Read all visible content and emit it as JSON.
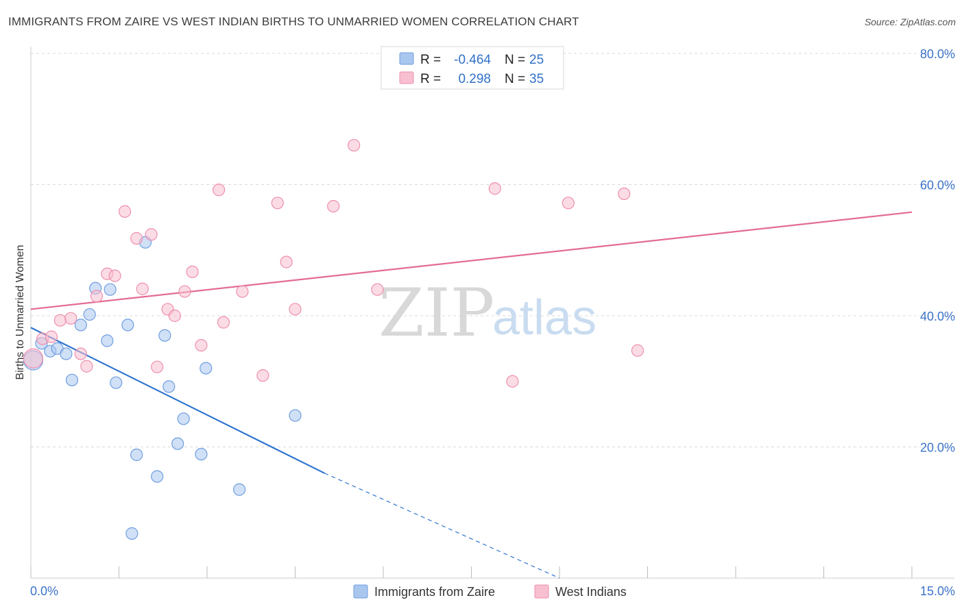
{
  "title": "IMMIGRANTS FROM ZAIRE VS WEST INDIAN BIRTHS TO UNMARRIED WOMEN CORRELATION CHART",
  "source": "Source: ZipAtlas.com",
  "watermark": {
    "zip": "ZIP",
    "atlas": "atlas"
  },
  "legend": {
    "rows": [
      {
        "r_label": "R =",
        "r_value": "-0.464",
        "n_label": "N =",
        "n_value": "25",
        "color": "#a9c6ef",
        "stroke": "#6f9ee0"
      },
      {
        "r_label": "R =",
        "r_value": "0.298",
        "n_label": "N =",
        "n_value": "35",
        "color": "#f7bfd0",
        "stroke": "#ee8fae"
      }
    ]
  },
  "chart_data": {
    "type": "scatter",
    "title": "IMMIGRANTS FROM ZAIRE VS WEST INDIAN BIRTHS TO UNMARRIED WOMEN CORRELATION CHART",
    "xlabel": "",
    "ylabel": "Births to Unmarried Women",
    "xlim": [
      0,
      15
    ],
    "ylim": [
      0,
      80
    ],
    "x_tick_labels": {
      "left": "0.0%",
      "right": "15.0%"
    },
    "y_ticks": [
      {
        "value": 20,
        "label": "20.0%"
      },
      {
        "value": 40,
        "label": "40.0%"
      },
      {
        "value": 60,
        "label": "60.0%"
      },
      {
        "value": 80,
        "label": "80.0%"
      }
    ],
    "series": [
      {
        "name": "Immigrants from Zaire",
        "color": "#a9c6ef",
        "stroke": "#6f9ee0",
        "line_color": "#2f74d0",
        "trend": {
          "x0": 0,
          "y0": 38.2,
          "x1": 5.0,
          "y1": 16.0,
          "dash_to_x": 9.0,
          "dash_to_y": -1.5
        },
        "points": [
          [
            0.04,
            33.2
          ],
          [
            0.18,
            35.8
          ],
          [
            0.33,
            34.6
          ],
          [
            0.45,
            35.0
          ],
          [
            0.6,
            34.2
          ],
          [
            0.7,
            30.2
          ],
          [
            0.85,
            38.6
          ],
          [
            1.0,
            40.2
          ],
          [
            1.1,
            44.2
          ],
          [
            1.3,
            36.2
          ],
          [
            1.45,
            29.8
          ],
          [
            1.35,
            44.0
          ],
          [
            1.65,
            38.6
          ],
          [
            1.8,
            18.8
          ],
          [
            1.95,
            51.2
          ],
          [
            1.72,
            6.8
          ],
          [
            2.15,
            15.5
          ],
          [
            2.28,
            37.0
          ],
          [
            2.35,
            29.2
          ],
          [
            2.5,
            20.5
          ],
          [
            2.6,
            24.3
          ],
          [
            2.9,
            18.9
          ],
          [
            2.98,
            32.0
          ],
          [
            3.55,
            13.5
          ],
          [
            4.5,
            24.8
          ]
        ]
      },
      {
        "name": "West Indians",
        "color": "#f7bfd0",
        "stroke": "#ee8fae",
        "line_color": "#e36b93",
        "trend": {
          "x0": 0,
          "y0": 41.0,
          "x1": 15.0,
          "y1": 55.8
        },
        "points": [
          [
            0.04,
            33.5
          ],
          [
            0.2,
            36.5
          ],
          [
            0.35,
            36.8
          ],
          [
            0.5,
            39.3
          ],
          [
            0.68,
            39.6
          ],
          [
            0.85,
            34.2
          ],
          [
            0.95,
            32.3
          ],
          [
            1.12,
            43.0
          ],
          [
            1.3,
            46.4
          ],
          [
            1.43,
            46.1
          ],
          [
            1.6,
            55.9
          ],
          [
            1.8,
            51.8
          ],
          [
            1.9,
            44.1
          ],
          [
            2.05,
            52.4
          ],
          [
            2.15,
            32.2
          ],
          [
            2.33,
            41.0
          ],
          [
            2.45,
            40.0
          ],
          [
            2.62,
            43.7
          ],
          [
            2.75,
            46.7
          ],
          [
            2.9,
            35.5
          ],
          [
            3.2,
            59.2
          ],
          [
            3.28,
            39.0
          ],
          [
            3.6,
            43.7
          ],
          [
            3.95,
            30.9
          ],
          [
            4.2,
            57.2
          ],
          [
            4.35,
            48.2
          ],
          [
            4.5,
            41.0
          ],
          [
            5.15,
            56.7
          ],
          [
            5.5,
            66.0
          ],
          [
            5.9,
            44.0
          ],
          [
            7.9,
            59.4
          ],
          [
            8.2,
            30.0
          ],
          [
            9.15,
            57.2
          ],
          [
            10.1,
            58.6
          ],
          [
            10.33,
            34.7
          ]
        ]
      }
    ]
  },
  "bottom_legend": [
    {
      "label": "Immigrants from Zaire",
      "color": "#a9c6ef",
      "stroke": "#6f9ee0"
    },
    {
      "label": "West Indians",
      "color": "#f7bfd0",
      "stroke": "#ee8fae"
    }
  ]
}
